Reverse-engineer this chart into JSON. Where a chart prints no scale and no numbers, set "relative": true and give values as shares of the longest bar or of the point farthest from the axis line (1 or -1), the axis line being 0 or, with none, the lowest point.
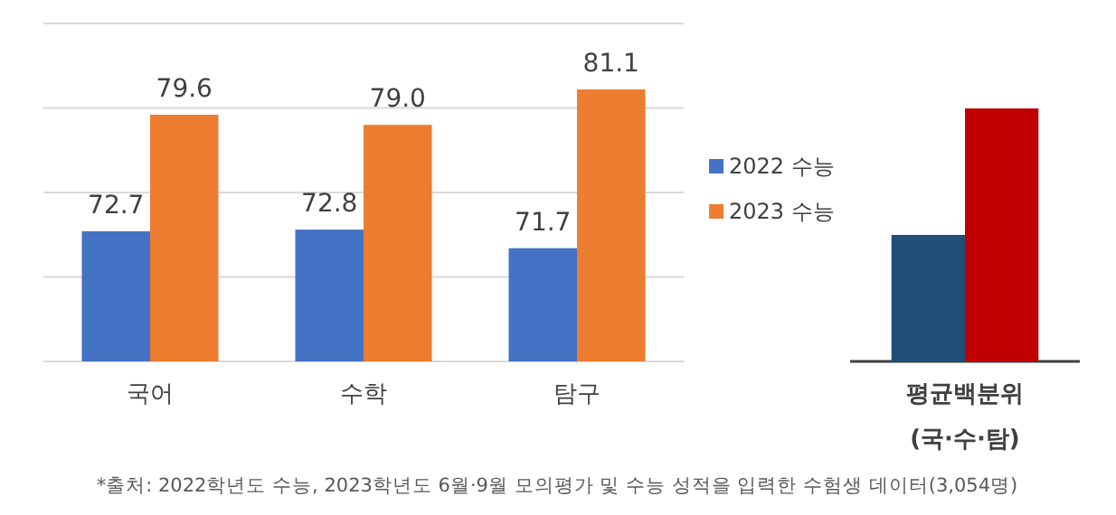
{
  "chart_data": [
    {
      "type": "bar",
      "categories": [
        "국어",
        "수학",
        "탐구"
      ],
      "series": [
        {
          "name": "2022 수능",
          "color": "#4472c4",
          "values": [
            72.7,
            72.8,
            71.7
          ],
          "value_labels": [
            "72.7",
            "72.8",
            "71.7"
          ]
        },
        {
          "name": "2023 수능",
          "color": "#ed7d31",
          "values": [
            79.6,
            79.0,
            81.1
          ],
          "value_labels": [
            "79.6",
            "79.0",
            "81.1"
          ]
        }
      ],
      "ylim": [
        65,
        85
      ],
      "yticks": [
        {
          "value": 65,
          "label": null
        },
        {
          "value": 70,
          "label": null
        },
        {
          "value": 75,
          "label": null
        },
        {
          "value": 80,
          "label": null
        },
        {
          "value": 85,
          "label": null
        }
      ],
      "tick_labels": "x",
      "grid": "y",
      "legend": "right"
    },
    {
      "type": "bar",
      "categories": [
        "평균백분위\n(국·수·탐)"
      ],
      "series": [
        {
          "color": "#1f4e79",
          "values": [
            0.5
          ]
        },
        {
          "color": "#c00000",
          "values": [
            1
          ]
        }
      ],
      "relative": true,
      "annotations": [
        "*출처: 2022학년도 수능, 2023학년도 6월·9월 모의평가 및 수능 성적을 입력한 수험생 데이터(3,054명)"
      ]
    }
  ]
}
